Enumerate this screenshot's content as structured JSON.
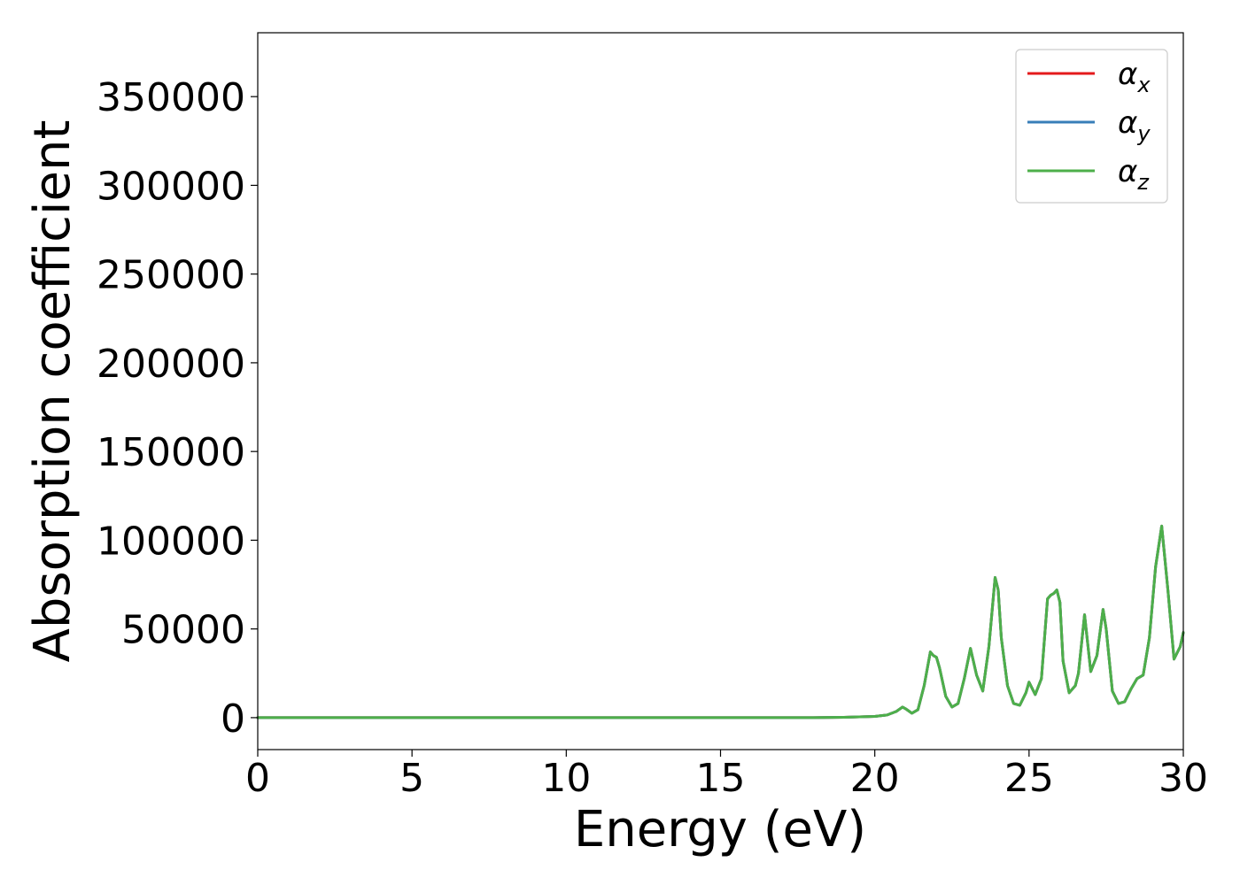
{
  "chart_data": {
    "type": "line",
    "xlabel": "Energy (eV)",
    "ylabel": "Absorption coefficient",
    "xlim": [
      0,
      30
    ],
    "ylim": [
      -18000,
      386000
    ],
    "xticks": [
      0,
      5,
      10,
      15,
      20,
      25,
      30
    ],
    "xtick_labels": [
      "0",
      "5",
      "10",
      "15",
      "20",
      "25",
      "30"
    ],
    "yticks": [
      0,
      50000,
      100000,
      150000,
      200000,
      250000,
      300000,
      350000
    ],
    "ytick_labels": [
      "0",
      "50000",
      "100000",
      "150000",
      "200000",
      "250000",
      "300000",
      "350000"
    ],
    "grid": false,
    "legend_position": "top-right",
    "series": [
      {
        "name": "αx",
        "legend_symbol": "α",
        "legend_subscript": "x",
        "color": "#e41a1c",
        "x": [
          0,
          5,
          10,
          15,
          18,
          19,
          20,
          20.4,
          20.7,
          20.9,
          21.0,
          21.2,
          21.4,
          21.6,
          21.8,
          21.9,
          22.0,
          22.1,
          22.3,
          22.5,
          22.7,
          22.9,
          23.1,
          23.3,
          23.5,
          23.7,
          23.9,
          24.0,
          24.1,
          24.3,
          24.5,
          24.7,
          24.9,
          25.0,
          25.2,
          25.4,
          25.6,
          25.7,
          25.8,
          25.9,
          26.0,
          26.1,
          26.3,
          26.5,
          26.6,
          26.8,
          27.0,
          27.2,
          27.4,
          27.5,
          27.7,
          27.9,
          28.1,
          28.3,
          28.5,
          28.7,
          28.9,
          29.1,
          29.3,
          29.5,
          29.7,
          29.9,
          30
        ],
        "y": [
          0,
          0,
          0,
          0,
          0,
          200,
          700,
          1500,
          3500,
          6000,
          5000,
          2500,
          4500,
          18000,
          37000,
          35000,
          34000,
          28000,
          12000,
          6000,
          8000,
          22000,
          39000,
          24000,
          15000,
          40000,
          79000,
          72000,
          45000,
          18000,
          8000,
          7000,
          14000,
          20000,
          13000,
          22000,
          67000,
          69000,
          70000,
          72000,
          65000,
          32000,
          14000,
          18000,
          25000,
          58000,
          26000,
          35000,
          61000,
          50000,
          15000,
          8000,
          9000,
          16000,
          22000,
          24000,
          45000,
          85000,
          108000,
          72000,
          33000,
          40000,
          48000
        ]
      },
      {
        "name": "αy",
        "legend_symbol": "α",
        "legend_subscript": "y",
        "color": "#377eb8",
        "x": [
          0,
          5,
          10,
          15,
          18,
          19,
          20,
          20.4,
          20.7,
          20.9,
          21.0,
          21.2,
          21.4,
          21.6,
          21.8,
          21.9,
          22.0,
          22.1,
          22.3,
          22.5,
          22.7,
          22.9,
          23.1,
          23.3,
          23.5,
          23.7,
          23.9,
          24.0,
          24.1,
          24.3,
          24.5,
          24.7,
          24.9,
          25.0,
          25.2,
          25.4,
          25.6,
          25.7,
          25.8,
          25.9,
          26.0,
          26.1,
          26.3,
          26.5,
          26.6,
          26.8,
          27.0,
          27.2,
          27.4,
          27.5,
          27.7,
          27.9,
          28.1,
          28.3,
          28.5,
          28.7,
          28.9,
          29.1,
          29.3,
          29.5,
          29.7,
          29.9,
          30
        ],
        "y": [
          0,
          0,
          0,
          0,
          0,
          200,
          700,
          1500,
          3500,
          6000,
          5000,
          2500,
          4500,
          18000,
          37000,
          35000,
          34000,
          28000,
          12000,
          6000,
          8000,
          22000,
          39000,
          24000,
          15000,
          40000,
          79000,
          72000,
          45000,
          18000,
          8000,
          7000,
          14000,
          20000,
          13000,
          22000,
          67000,
          69000,
          70000,
          72000,
          65000,
          32000,
          14000,
          18000,
          25000,
          58000,
          26000,
          35000,
          61000,
          50000,
          15000,
          8000,
          9000,
          16000,
          22000,
          24000,
          45000,
          85000,
          108000,
          72000,
          33000,
          40000,
          48000
        ]
      },
      {
        "name": "αz",
        "legend_symbol": "α",
        "legend_subscript": "z",
        "color": "#4daf4a",
        "x": [
          0,
          5,
          10,
          15,
          18,
          19,
          20,
          20.4,
          20.7,
          20.9,
          21.0,
          21.2,
          21.4,
          21.6,
          21.8,
          21.9,
          22.0,
          22.1,
          22.3,
          22.5,
          22.7,
          22.9,
          23.1,
          23.3,
          23.5,
          23.7,
          23.9,
          24.0,
          24.1,
          24.3,
          24.5,
          24.7,
          24.9,
          25.0,
          25.2,
          25.4,
          25.6,
          25.7,
          25.8,
          25.9,
          26.0,
          26.1,
          26.3,
          26.5,
          26.6,
          26.8,
          27.0,
          27.2,
          27.4,
          27.5,
          27.7,
          27.9,
          28.1,
          28.3,
          28.5,
          28.7,
          28.9,
          29.1,
          29.3,
          29.5,
          29.7,
          29.9,
          30
        ],
        "y": [
          0,
          0,
          0,
          0,
          0,
          200,
          700,
          1500,
          3500,
          6000,
          5000,
          2500,
          4500,
          18000,
          37000,
          35000,
          34000,
          28000,
          12000,
          6000,
          8000,
          22000,
          39000,
          24000,
          15000,
          40000,
          79000,
          72000,
          45000,
          18000,
          8000,
          7000,
          14000,
          20000,
          13000,
          22000,
          67000,
          69000,
          70000,
          72000,
          65000,
          32000,
          14000,
          18000,
          25000,
          58000,
          26000,
          35000,
          61000,
          50000,
          15000,
          8000,
          9000,
          16000,
          22000,
          24000,
          45000,
          85000,
          108000,
          72000,
          33000,
          40000,
          48000
        ]
      }
    ]
  }
}
